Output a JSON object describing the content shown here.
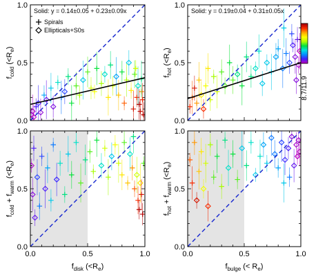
{
  "chart_data": [
    {
      "type": "scatter",
      "panel": "top-left",
      "ylabel": {
        "main": "f",
        "sub": "cold",
        "unit": " (<R",
        "unit_sub": "e",
        "close": ")"
      },
      "xlim": [
        0,
        1
      ],
      "ylim": [
        0,
        1
      ],
      "yticks": [
        "0.0",
        "0.5",
        "1.0"
      ],
      "annotation": "Solid: y = 0.14±0.05 + 0.23±0.09x",
      "legend": [
        "Spirals",
        "Ellipticals+S0s"
      ],
      "fit_line": {
        "intercept": 0.14,
        "slope": 0.23
      },
      "one_to_one_line": true,
      "shaded_region": null,
      "points": [
        {
          "x": 0.01,
          "y": 0.05,
          "m": "d",
          "c": 0.05
        },
        {
          "x": 0.02,
          "y": 0.08,
          "m": "d",
          "c": 0.02
        },
        {
          "x": 0.03,
          "y": 0.03,
          "m": "d",
          "c": 0.0
        },
        {
          "x": 0.05,
          "y": 0.12,
          "m": "p",
          "c": 0.1
        },
        {
          "x": 0.07,
          "y": 0.15,
          "m": "d",
          "c": 0.12
        },
        {
          "x": 0.09,
          "y": 0.07,
          "m": "d",
          "c": 0.04
        },
        {
          "x": 0.12,
          "y": 0.22,
          "m": "p",
          "c": 0.25
        },
        {
          "x": 0.14,
          "y": 0.18,
          "m": "d",
          "c": 0.08
        },
        {
          "x": 0.18,
          "y": 0.28,
          "m": "p",
          "c": 0.3
        },
        {
          "x": 0.2,
          "y": 0.12,
          "m": "d",
          "c": 0.06
        },
        {
          "x": 0.24,
          "y": 0.33,
          "m": "p",
          "c": 0.35
        },
        {
          "x": 0.27,
          "y": 0.2,
          "m": "p",
          "c": 0.2
        },
        {
          "x": 0.3,
          "y": 0.25,
          "m": "d",
          "c": 0.15
        },
        {
          "x": 0.33,
          "y": 0.38,
          "m": "p",
          "c": 0.4
        },
        {
          "x": 0.36,
          "y": 0.15,
          "m": "p",
          "c": 0.45
        },
        {
          "x": 0.4,
          "y": 0.3,
          "m": "p",
          "c": 0.5
        },
        {
          "x": 0.43,
          "y": 0.22,
          "m": "p",
          "c": 0.55
        },
        {
          "x": 0.46,
          "y": 0.35,
          "m": "d",
          "c": 0.3
        },
        {
          "x": 0.5,
          "y": 0.42,
          "m": "p",
          "c": 0.5
        },
        {
          "x": 0.53,
          "y": 0.28,
          "m": "p",
          "c": 0.6
        },
        {
          "x": 0.56,
          "y": 0.25,
          "m": "p",
          "c": 0.65
        },
        {
          "x": 0.58,
          "y": 0.45,
          "m": "p",
          "c": 0.45
        },
        {
          "x": 0.62,
          "y": 0.32,
          "m": "p",
          "c": 0.55
        },
        {
          "x": 0.65,
          "y": 0.4,
          "m": "d",
          "c": 0.35
        },
        {
          "x": 0.68,
          "y": 0.2,
          "m": "p",
          "c": 0.7
        },
        {
          "x": 0.7,
          "y": 0.48,
          "m": "p",
          "c": 0.4
        },
        {
          "x": 0.72,
          "y": 0.3,
          "m": "p",
          "c": 0.6
        },
        {
          "x": 0.75,
          "y": 0.38,
          "m": "d",
          "c": 0.25
        },
        {
          "x": 0.77,
          "y": 0.22,
          "m": "p",
          "c": 0.75
        },
        {
          "x": 0.8,
          "y": 0.42,
          "m": "p",
          "c": 0.45
        },
        {
          "x": 0.82,
          "y": 0.15,
          "m": "p",
          "c": 0.85
        },
        {
          "x": 0.84,
          "y": 0.35,
          "m": "p",
          "c": 0.55
        },
        {
          "x": 0.86,
          "y": 0.5,
          "m": "d",
          "c": 0.3
        },
        {
          "x": 0.88,
          "y": 0.26,
          "m": "p",
          "c": 0.7
        },
        {
          "x": 0.9,
          "y": 0.1,
          "m": "p",
          "c": 0.95
        },
        {
          "x": 0.91,
          "y": 0.4,
          "m": "p",
          "c": 0.5
        },
        {
          "x": 0.93,
          "y": 0.2,
          "m": "p",
          "c": 0.9
        },
        {
          "x": 0.94,
          "y": 0.3,
          "m": "d",
          "c": 0.35
        },
        {
          "x": 0.95,
          "y": 0.14,
          "m": "p",
          "c": 1.0
        },
        {
          "x": 0.96,
          "y": 0.08,
          "m": "p",
          "c": 0.98
        },
        {
          "x": 0.97,
          "y": 0.25,
          "m": "p",
          "c": 0.8
        },
        {
          "x": 0.98,
          "y": 0.18,
          "m": "p",
          "c": 0.92
        },
        {
          "x": 0.99,
          "y": 0.05,
          "m": "p",
          "c": 1.0
        },
        {
          "x": 0.92,
          "y": 0.45,
          "m": "p",
          "c": 0.6
        },
        {
          "x": 0.97,
          "y": 0.36,
          "m": "p",
          "c": 0.4
        }
      ]
    },
    {
      "type": "scatter",
      "panel": "top-right",
      "ylabel": {
        "main": "f",
        "sub": "hot",
        "unit": " (<R",
        "unit_sub": "e",
        "close": ")"
      },
      "xlim": [
        0,
        1
      ],
      "ylim": [
        0,
        1
      ],
      "yticks": [
        "0.0",
        "0.5",
        "1.0"
      ],
      "annotation": "Solid: y = 0.19±0.04 + 0.31±0.05x",
      "colorbar_label": "8.7/11.9",
      "fit_line": {
        "intercept": 0.19,
        "slope": 0.31
      },
      "one_to_one_line": true,
      "shaded_region": null,
      "points": [
        {
          "x": 0.02,
          "y": 0.12,
          "m": "p",
          "c": 0.9
        },
        {
          "x": 0.04,
          "y": 0.2,
          "m": "p",
          "c": 0.85
        },
        {
          "x": 0.06,
          "y": 0.28,
          "m": "p",
          "c": 0.95
        },
        {
          "x": 0.08,
          "y": 0.15,
          "m": "p",
          "c": 0.8
        },
        {
          "x": 0.1,
          "y": 0.35,
          "m": "p",
          "c": 0.75
        },
        {
          "x": 0.12,
          "y": 0.22,
          "m": "d",
          "c": 0.7
        },
        {
          "x": 0.14,
          "y": 0.1,
          "m": "d",
          "c": 0.9
        },
        {
          "x": 0.16,
          "y": 0.3,
          "m": "p",
          "c": 0.65
        },
        {
          "x": 0.18,
          "y": 0.45,
          "m": "p",
          "c": 0.7
        },
        {
          "x": 0.2,
          "y": 0.18,
          "m": "p",
          "c": 0.6
        },
        {
          "x": 0.23,
          "y": 0.38,
          "m": "p",
          "c": 0.55
        },
        {
          "x": 0.26,
          "y": 0.25,
          "m": "p",
          "c": 0.6
        },
        {
          "x": 0.3,
          "y": 0.42,
          "m": "p",
          "c": 0.5
        },
        {
          "x": 0.33,
          "y": 0.3,
          "m": "d",
          "c": 0.5
        },
        {
          "x": 0.37,
          "y": 0.5,
          "m": "p",
          "c": 0.45
        },
        {
          "x": 0.4,
          "y": 0.35,
          "m": "p",
          "c": 0.5
        },
        {
          "x": 0.44,
          "y": 0.4,
          "m": "d",
          "c": 0.4
        },
        {
          "x": 0.48,
          "y": 0.3,
          "m": "p",
          "c": 0.45
        },
        {
          "x": 0.52,
          "y": 0.55,
          "m": "p",
          "c": 0.4
        },
        {
          "x": 0.56,
          "y": 0.38,
          "m": "p",
          "c": 0.4
        },
        {
          "x": 0.6,
          "y": 0.45,
          "m": "d",
          "c": 0.35
        },
        {
          "x": 0.63,
          "y": 0.6,
          "m": "p",
          "c": 0.35
        },
        {
          "x": 0.66,
          "y": 0.32,
          "m": "d",
          "c": 0.3
        },
        {
          "x": 0.7,
          "y": 0.5,
          "m": "d",
          "c": 0.3
        },
        {
          "x": 0.74,
          "y": 0.42,
          "m": "p",
          "c": 0.3
        },
        {
          "x": 0.78,
          "y": 0.55,
          "m": "d",
          "c": 0.25
        },
        {
          "x": 0.8,
          "y": 0.62,
          "m": "p",
          "c": 0.25
        },
        {
          "x": 0.84,
          "y": 0.45,
          "m": "d",
          "c": 0.2
        },
        {
          "x": 0.87,
          "y": 0.58,
          "m": "p",
          "c": 0.2
        },
        {
          "x": 0.9,
          "y": 0.5,
          "m": "d",
          "c": 0.15
        },
        {
          "x": 0.93,
          "y": 0.65,
          "m": "d",
          "c": 0.1
        },
        {
          "x": 0.95,
          "y": 0.55,
          "m": "d",
          "c": 0.05
        },
        {
          "x": 0.97,
          "y": 0.7,
          "m": "p",
          "c": 0.08
        },
        {
          "x": 0.98,
          "y": 0.48,
          "m": "d",
          "c": 0.02
        },
        {
          "x": 0.99,
          "y": 0.6,
          "m": "d",
          "c": 0.0
        },
        {
          "x": 0.96,
          "y": 0.35,
          "m": "d",
          "c": 0.05
        },
        {
          "x": 0.92,
          "y": 0.75,
          "m": "p",
          "c": 0.15
        },
        {
          "x": 0.85,
          "y": 0.8,
          "m": "p",
          "c": 0.3
        }
      ]
    },
    {
      "type": "scatter",
      "panel": "bottom-left",
      "xlabel": {
        "main": "f",
        "sub": "disk",
        "unit": " (<R",
        "unit_sub": "e",
        "close": ")"
      },
      "ylabel": {
        "main": "f",
        "sub": "cold",
        "plus": " + f",
        "sub2": "warm",
        "unit": " (<R",
        "unit_sub": "e",
        "close": ")"
      },
      "xlim": [
        0,
        1
      ],
      "ylim": [
        0,
        1
      ],
      "xticks": [
        "0.0",
        "0.5",
        "1.0"
      ],
      "yticks": [
        "0.0",
        "0.5",
        "1.0"
      ],
      "one_to_one_line": true,
      "shaded_region": [
        0,
        0.5
      ],
      "points": [
        {
          "x": 0.01,
          "y": 0.7,
          "m": "d",
          "c": 0.02
        },
        {
          "x": 0.02,
          "y": 0.45,
          "m": "d",
          "c": 0.05
        },
        {
          "x": 0.03,
          "y": 0.85,
          "m": "p",
          "c": 0.1
        },
        {
          "x": 0.04,
          "y": 0.25,
          "m": "d",
          "c": 0.08
        },
        {
          "x": 0.06,
          "y": 0.6,
          "m": "d",
          "c": 0.15
        },
        {
          "x": 0.08,
          "y": 0.35,
          "m": "p",
          "c": 0.2
        },
        {
          "x": 0.1,
          "y": 0.78,
          "m": "p",
          "c": 0.15
        },
        {
          "x": 0.13,
          "y": 0.5,
          "m": "d",
          "c": 0.1
        },
        {
          "x": 0.15,
          "y": 0.68,
          "m": "p",
          "c": 0.25
        },
        {
          "x": 0.18,
          "y": 0.4,
          "m": "p",
          "c": 0.3
        },
        {
          "x": 0.2,
          "y": 0.88,
          "m": "p",
          "c": 0.2
        },
        {
          "x": 0.23,
          "y": 0.58,
          "m": "d",
          "c": 0.12
        },
        {
          "x": 0.26,
          "y": 0.72,
          "m": "p",
          "c": 0.35
        },
        {
          "x": 0.3,
          "y": 0.45,
          "m": "p",
          "c": 0.4
        },
        {
          "x": 0.33,
          "y": 0.8,
          "m": "p",
          "c": 0.3
        },
        {
          "x": 0.36,
          "y": 0.62,
          "m": "p",
          "c": 0.45
        },
        {
          "x": 0.4,
          "y": 0.9,
          "m": "p",
          "c": 0.35
        },
        {
          "x": 0.44,
          "y": 0.55,
          "m": "p",
          "c": 0.5
        },
        {
          "x": 0.48,
          "y": 0.75,
          "m": "p",
          "c": 0.4
        },
        {
          "x": 0.52,
          "y": 0.82,
          "m": "p",
          "c": 0.5
        },
        {
          "x": 0.55,
          "y": 0.65,
          "m": "p",
          "c": 0.55
        },
        {
          "x": 0.58,
          "y": 0.92,
          "m": "p",
          "c": 0.45
        },
        {
          "x": 0.62,
          "y": 0.7,
          "m": "d",
          "c": 0.35
        },
        {
          "x": 0.65,
          "y": 0.85,
          "m": "p",
          "c": 0.6
        },
        {
          "x": 0.68,
          "y": 0.6,
          "m": "p",
          "c": 0.55
        },
        {
          "x": 0.71,
          "y": 0.78,
          "m": "d",
          "c": 0.3
        },
        {
          "x": 0.74,
          "y": 0.88,
          "m": "p",
          "c": 0.65
        },
        {
          "x": 0.77,
          "y": 0.72,
          "m": "p",
          "c": 0.6
        },
        {
          "x": 0.8,
          "y": 0.62,
          "m": "p",
          "c": 0.7
        },
        {
          "x": 0.82,
          "y": 0.9,
          "m": "p",
          "c": 0.5
        },
        {
          "x": 0.85,
          "y": 0.55,
          "m": "p",
          "c": 0.75
        },
        {
          "x": 0.87,
          "y": 0.8,
          "m": "d",
          "c": 0.35
        },
        {
          "x": 0.89,
          "y": 0.68,
          "m": "p",
          "c": 0.8
        },
        {
          "x": 0.91,
          "y": 0.5,
          "m": "p",
          "c": 0.85
        },
        {
          "x": 0.93,
          "y": 0.62,
          "m": "d",
          "c": 0.6
        },
        {
          "x": 0.94,
          "y": 0.4,
          "m": "p",
          "c": 0.9
        },
        {
          "x": 0.95,
          "y": 0.32,
          "m": "p",
          "c": 1.0
        },
        {
          "x": 0.96,
          "y": 0.55,
          "m": "d",
          "c": 0.7
        },
        {
          "x": 0.97,
          "y": 0.45,
          "m": "p",
          "c": 0.95
        },
        {
          "x": 0.98,
          "y": 0.28,
          "m": "p",
          "c": 1.0
        },
        {
          "x": 0.99,
          "y": 0.72,
          "m": "p",
          "c": 0.5
        },
        {
          "x": 0.9,
          "y": 0.95,
          "m": "p",
          "c": 0.4
        }
      ]
    },
    {
      "type": "scatter",
      "panel": "bottom-right",
      "xlabel": {
        "main": "f",
        "sub": "bulge",
        "unit": " (< R",
        "unit_sub": "e",
        "close": ")"
      },
      "ylabel": {
        "main": "f",
        "sub": "hot",
        "plus": " + f",
        "sub2": "warm",
        "unit": " (<R",
        "unit_sub": "e",
        "close": ")"
      },
      "xlim": [
        0,
        1
      ],
      "ylim": [
        0,
        1
      ],
      "xticks": [
        "0.0",
        "0.5",
        "1.0"
      ],
      "yticks": [
        "0.0",
        "0.5",
        "1.0"
      ],
      "one_to_one_line": true,
      "shaded_region": [
        0,
        0.5
      ],
      "points": [
        {
          "x": 0.02,
          "y": 0.75,
          "m": "p",
          "c": 0.85
        },
        {
          "x": 0.04,
          "y": 0.55,
          "m": "p",
          "c": 0.9
        },
        {
          "x": 0.06,
          "y": 0.9,
          "m": "p",
          "c": 0.8
        },
        {
          "x": 0.08,
          "y": 0.4,
          "m": "d",
          "c": 0.95
        },
        {
          "x": 0.1,
          "y": 0.65,
          "m": "p",
          "c": 0.75
        },
        {
          "x": 0.12,
          "y": 0.82,
          "m": "p",
          "c": 0.7
        },
        {
          "x": 0.14,
          "y": 0.5,
          "m": "d",
          "c": 0.65
        },
        {
          "x": 0.16,
          "y": 0.72,
          "m": "p",
          "c": 0.6
        },
        {
          "x": 0.18,
          "y": 0.35,
          "m": "d",
          "c": 0.9
        },
        {
          "x": 0.2,
          "y": 0.88,
          "m": "p",
          "c": 0.55
        },
        {
          "x": 0.23,
          "y": 0.6,
          "m": "p",
          "c": 0.5
        },
        {
          "x": 0.26,
          "y": 0.78,
          "m": "p",
          "c": 0.45
        },
        {
          "x": 0.3,
          "y": 0.52,
          "m": "p",
          "c": 0.55
        },
        {
          "x": 0.33,
          "y": 0.92,
          "m": "p",
          "c": 0.4
        },
        {
          "x": 0.36,
          "y": 0.68,
          "m": "d",
          "c": 0.35
        },
        {
          "x": 0.4,
          "y": 0.8,
          "m": "p",
          "c": 0.45
        },
        {
          "x": 0.44,
          "y": 0.58,
          "m": "p",
          "c": 0.5
        },
        {
          "x": 0.48,
          "y": 0.85,
          "m": "d",
          "c": 0.3
        },
        {
          "x": 0.52,
          "y": 0.7,
          "m": "p",
          "c": 0.4
        },
        {
          "x": 0.56,
          "y": 0.9,
          "m": "p",
          "c": 0.35
        },
        {
          "x": 0.6,
          "y": 0.62,
          "m": "d",
          "c": 0.3
        },
        {
          "x": 0.64,
          "y": 0.78,
          "m": "p",
          "c": 0.35
        },
        {
          "x": 0.67,
          "y": 0.88,
          "m": "d",
          "c": 0.25
        },
        {
          "x": 0.7,
          "y": 0.72,
          "m": "p",
          "c": 0.3
        },
        {
          "x": 0.74,
          "y": 0.94,
          "m": "d",
          "c": 0.2
        },
        {
          "x": 0.77,
          "y": 0.8,
          "m": "d",
          "c": 0.2
        },
        {
          "x": 0.8,
          "y": 0.68,
          "m": "p",
          "c": 0.25
        },
        {
          "x": 0.83,
          "y": 0.9,
          "m": "d",
          "c": 0.15
        },
        {
          "x": 0.86,
          "y": 0.75,
          "m": "d",
          "c": 0.12
        },
        {
          "x": 0.89,
          "y": 0.85,
          "m": "d",
          "c": 0.1
        },
        {
          "x": 0.92,
          "y": 0.95,
          "m": "d",
          "c": 0.05
        },
        {
          "x": 0.94,
          "y": 0.7,
          "m": "d",
          "c": 0.08
        },
        {
          "x": 0.96,
          "y": 0.88,
          "m": "d",
          "c": 0.02
        },
        {
          "x": 0.97,
          "y": 0.78,
          "m": "d",
          "c": 0.0
        },
        {
          "x": 0.98,
          "y": 0.92,
          "m": "d",
          "c": 0.03
        },
        {
          "x": 0.99,
          "y": 0.82,
          "m": "d",
          "c": 0.0
        },
        {
          "x": 0.9,
          "y": 0.6,
          "m": "p",
          "c": 0.2
        },
        {
          "x": 0.85,
          "y": 0.55,
          "m": "p",
          "c": 0.3
        }
      ]
    }
  ],
  "colors": {
    "fit_line": "#000000",
    "one_to_one_line": "#1f2fd0",
    "shade": "#e4e4e4",
    "colormap": [
      "#c000c0",
      "#4020ff",
      "#0090ff",
      "#00e0e0",
      "#00e040",
      "#b0ff00",
      "#ffff00",
      "#ffb000",
      "#ff3000",
      "#b00000"
    ]
  }
}
